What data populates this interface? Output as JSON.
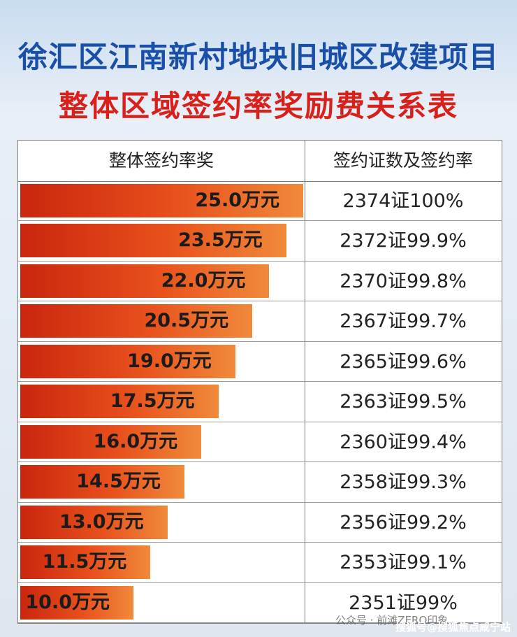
{
  "header": {
    "title": "徐汇区江南新村地块旧城区改建项目",
    "subtitle": "整体区域签约率奖励费关系表"
  },
  "table": {
    "columns": [
      "整体签约率奖",
      "签约证数及签约率"
    ],
    "rows": [
      {
        "reward": 25,
        "reward_label": "25.0万元",
        "count_rate": "2374证100%"
      },
      {
        "reward": 23.5,
        "reward_label": "23.5万元",
        "count_rate": "2372证99.9%"
      },
      {
        "reward": 22,
        "reward_label": "22.0万元",
        "count_rate": "2370证99.8%"
      },
      {
        "reward": 20.5,
        "reward_label": "20.5万元",
        "count_rate": "2367证99.7%"
      },
      {
        "reward": 19,
        "reward_label": "19.0万元",
        "count_rate": "2365证99.6%"
      },
      {
        "reward": 17.5,
        "reward_label": "17.5万元",
        "count_rate": "2363证99.5%"
      },
      {
        "reward": 16,
        "reward_label": "16.0万元",
        "count_rate": "2360证99.4%"
      },
      {
        "reward": 14.5,
        "reward_label": "14.5万元",
        "count_rate": "2358证99.3%"
      },
      {
        "reward": 13,
        "reward_label": "13.0万元",
        "count_rate": "2356证99.2%"
      },
      {
        "reward": 11.5,
        "reward_label": "11.5万元",
        "count_rate": "2353证99.1%"
      },
      {
        "reward": 10,
        "reward_label": "10.0万元",
        "count_rate": "2351证99%"
      }
    ]
  },
  "watermarks": [
    "公众号 · 前滩ZERO印象",
    "搜狐号@搜狐焦点咸宁站"
  ]
}
